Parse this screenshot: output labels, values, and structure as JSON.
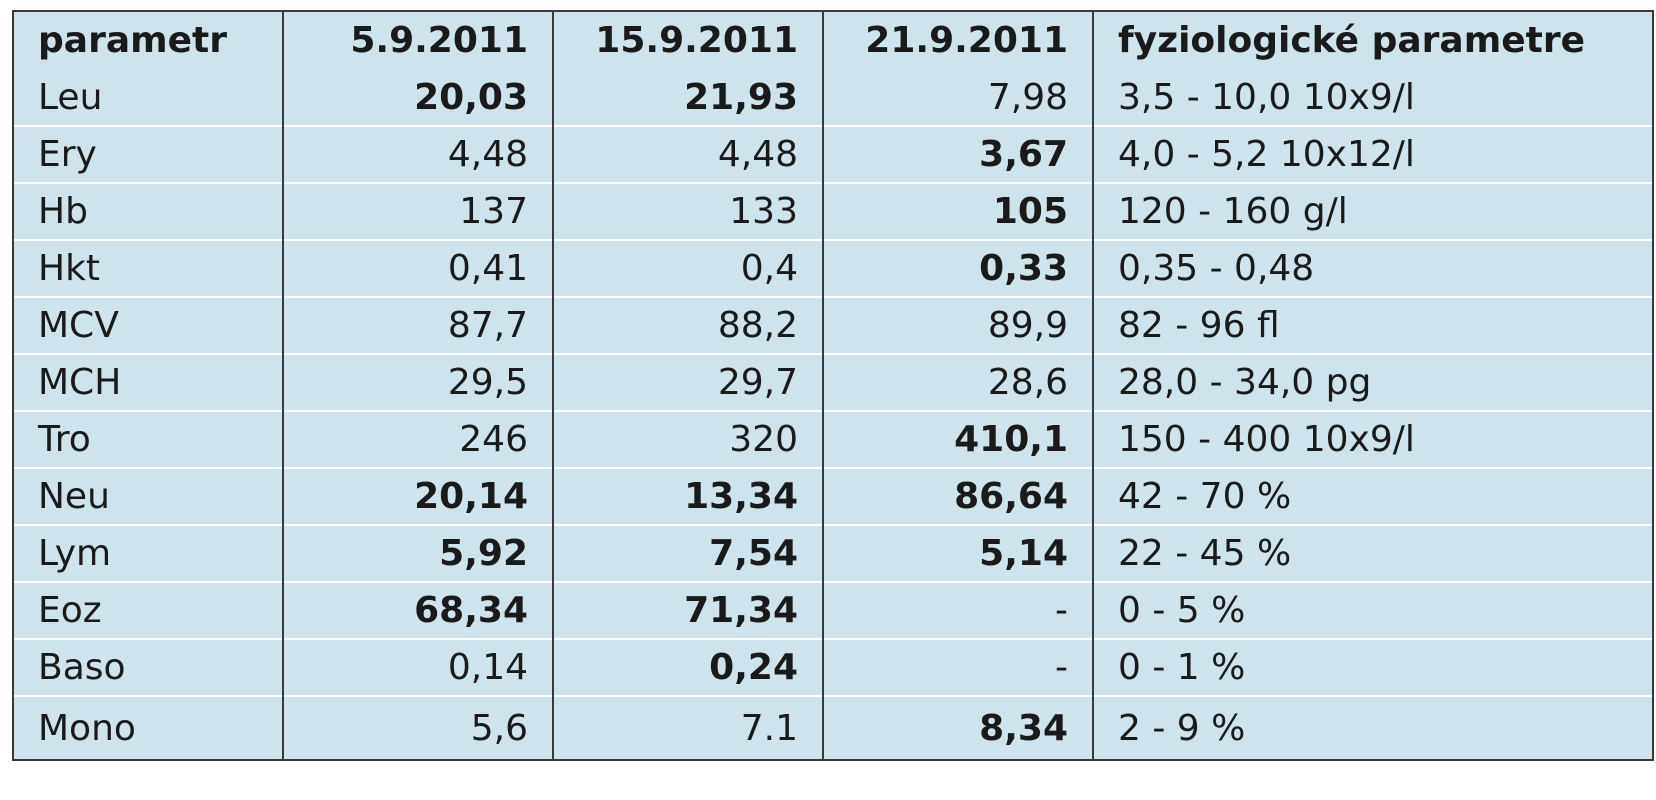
{
  "table": {
    "headers": [
      "parametr",
      "5.9.2011",
      "15.9.2011",
      "21.9.2011",
      "fyziologické parametre"
    ],
    "rows": [
      {
        "name": "Leu",
        "v1": "20,03",
        "v2": "21,93",
        "v3": "7,98",
        "range": "3,5 - 10,0 10x9/l",
        "bold": [
          true,
          true,
          false
        ]
      },
      {
        "name": "Ery",
        "v1": "4,48",
        "v2": "4,48",
        "v3": "3,67",
        "range": "4,0 - 5,2 10x12/l",
        "bold": [
          false,
          false,
          true
        ]
      },
      {
        "name": "Hb",
        "v1": "137",
        "v2": "133",
        "v3": "105",
        "range": "120 - 160 g/l",
        "bold": [
          false,
          false,
          true
        ]
      },
      {
        "name": "Hkt",
        "v1": "0,41",
        "v2": "0,4",
        "v3": "0,33",
        "range": "0,35 - 0,48",
        "bold": [
          false,
          false,
          true
        ]
      },
      {
        "name": "MCV",
        "v1": "87,7",
        "v2": "88,2",
        "v3": "89,9",
        "range": "82 - 96 fl",
        "bold": [
          false,
          false,
          false
        ]
      },
      {
        "name": "MCH",
        "v1": "29,5",
        "v2": "29,7",
        "v3": "28,6",
        "range": "28,0 - 34,0 pg",
        "bold": [
          false,
          false,
          false
        ]
      },
      {
        "name": "Tro",
        "v1": "246",
        "v2": "320",
        "v3": "410,1",
        "range": "150 - 400 10x9/l",
        "bold": [
          false,
          false,
          true
        ]
      },
      {
        "name": "Neu",
        "v1": "20,14",
        "v2": "13,34",
        "v3": "86,64",
        "range": "42 - 70 %",
        "bold": [
          true,
          true,
          true
        ]
      },
      {
        "name": "Lym",
        "v1": "5,92",
        "v2": "7,54",
        "v3": "5,14",
        "range": "22 - 45 %",
        "bold": [
          true,
          true,
          true
        ]
      },
      {
        "name": "Eoz",
        "v1": "68,34",
        "v2": "71,34",
        "v3": "-",
        "range": "0 - 5 %",
        "bold": [
          true,
          true,
          false
        ]
      },
      {
        "name": "Baso",
        "v1": "0,14",
        "v2": "0,24",
        "v3": "-",
        "range": "0 - 1 %",
        "bold": [
          false,
          true,
          false
        ]
      },
      {
        "name": "Mono",
        "v1": "5,6",
        "v2": "7.1",
        "v3": "8,34",
        "range": "2 - 9 %",
        "bold": [
          false,
          false,
          true
        ]
      }
    ]
  }
}
